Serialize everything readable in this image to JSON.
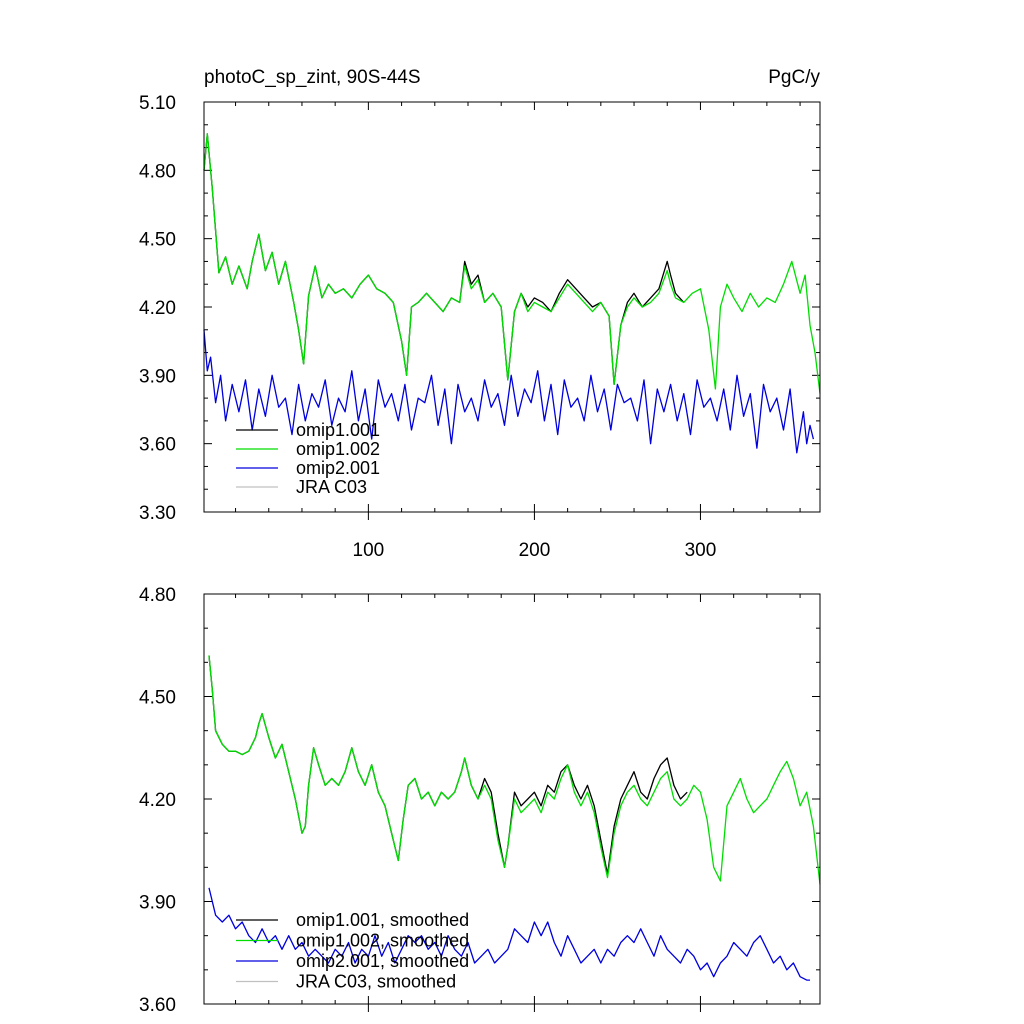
{
  "chart_data": [
    {
      "type": "line",
      "title": "photoC_sp_zint, 90S-44S",
      "units": "PgC/y",
      "xlim": [
        1,
        372
      ],
      "ylim": [
        3.3,
        5.1
      ],
      "yticks": [
        "3.30",
        "3.60",
        "3.90",
        "4.20",
        "4.50",
        "4.80",
        "5.10"
      ],
      "xticks": [
        "100",
        "200",
        "300"
      ],
      "grid": false,
      "legend_position": "bottom-left",
      "series": [
        {
          "name": "omip1.001",
          "color": "#000000",
          "x": [
            1,
            3,
            6,
            10,
            14,
            18,
            22,
            27,
            30,
            34,
            38,
            42,
            46,
            50,
            55,
            58,
            61,
            64,
            68,
            72,
            76,
            80,
            85,
            90,
            95,
            100,
            105,
            110,
            115,
            120,
            123,
            126,
            130,
            135,
            140,
            145,
            150,
            155,
            158,
            162,
            166,
            170,
            175,
            180,
            184,
            188,
            192,
            196,
            200,
            205,
            210,
            215,
            220,
            225,
            230,
            235,
            240,
            245,
            248,
            252,
            256,
            260,
            265,
            270,
            275,
            280,
            282,
            285,
            290
          ],
          "y": [
            4.8,
            4.96,
            4.72,
            4.35,
            4.42,
            4.3,
            4.38,
            4.28,
            4.4,
            4.52,
            4.36,
            4.44,
            4.3,
            4.4,
            4.22,
            4.1,
            3.95,
            4.25,
            4.38,
            4.24,
            4.3,
            4.26,
            4.28,
            4.24,
            4.3,
            4.34,
            4.28,
            4.26,
            4.22,
            4.05,
            3.9,
            4.2,
            4.22,
            4.26,
            4.22,
            4.18,
            4.24,
            4.22,
            4.4,
            4.3,
            4.34,
            4.22,
            4.26,
            4.2,
            3.88,
            4.18,
            4.26,
            4.2,
            4.24,
            4.22,
            4.18,
            4.26,
            4.32,
            4.28,
            4.24,
            4.2,
            4.22,
            4.16,
            3.86,
            4.12,
            4.22,
            4.26,
            4.2,
            4.24,
            4.28,
            4.4,
            4.34,
            4.26,
            4.22
          ]
        },
        {
          "name": "omip1.002",
          "color": "#00dd00",
          "x": [
            1,
            3,
            6,
            10,
            14,
            18,
            22,
            27,
            30,
            34,
            38,
            42,
            46,
            50,
            55,
            58,
            61,
            64,
            68,
            72,
            76,
            80,
            85,
            90,
            95,
            100,
            105,
            110,
            115,
            120,
            123,
            126,
            130,
            135,
            140,
            145,
            150,
            155,
            158,
            162,
            166,
            170,
            175,
            180,
            184,
            188,
            192,
            196,
            200,
            205,
            210,
            215,
            220,
            225,
            230,
            235,
            240,
            245,
            248,
            252,
            256,
            260,
            265,
            270,
            275,
            280,
            282,
            285,
            290,
            295,
            300,
            305,
            309,
            312,
            316,
            320,
            325,
            330,
            335,
            340,
            345,
            350,
            355,
            360,
            363,
            366,
            369,
            372
          ],
          "y": [
            4.8,
            4.96,
            4.72,
            4.35,
            4.42,
            4.3,
            4.38,
            4.28,
            4.4,
            4.52,
            4.36,
            4.44,
            4.3,
            4.4,
            4.22,
            4.1,
            3.95,
            4.25,
            4.38,
            4.24,
            4.3,
            4.26,
            4.28,
            4.24,
            4.3,
            4.34,
            4.28,
            4.26,
            4.22,
            4.05,
            3.9,
            4.2,
            4.22,
            4.26,
            4.22,
            4.18,
            4.24,
            4.22,
            4.38,
            4.28,
            4.32,
            4.22,
            4.26,
            4.2,
            3.88,
            4.18,
            4.26,
            4.18,
            4.22,
            4.2,
            4.18,
            4.24,
            4.3,
            4.26,
            4.22,
            4.18,
            4.22,
            4.16,
            3.86,
            4.12,
            4.2,
            4.24,
            4.2,
            4.22,
            4.26,
            4.36,
            4.3,
            4.24,
            4.22,
            4.26,
            4.28,
            4.1,
            3.84,
            4.2,
            4.3,
            4.24,
            4.18,
            4.26,
            4.2,
            4.24,
            4.22,
            4.3,
            4.4,
            4.26,
            4.34,
            4.12,
            4.0,
            3.82
          ]
        },
        {
          "name": "omip2.001",
          "color": "#0000dd",
          "x": [
            1,
            3,
            5,
            8,
            11,
            14,
            18,
            22,
            26,
            30,
            34,
            38,
            42,
            46,
            50,
            54,
            58,
            62,
            66,
            70,
            74,
            78,
            82,
            86,
            90,
            94,
            98,
            102,
            106,
            110,
            114,
            118,
            122,
            126,
            130,
            134,
            138,
            142,
            146,
            150,
            154,
            158,
            162,
            166,
            170,
            174,
            178,
            182,
            186,
            190,
            194,
            198,
            202,
            206,
            210,
            214,
            218,
            222,
            226,
            230,
            234,
            238,
            242,
            246,
            250,
            254,
            258,
            262,
            266,
            270,
            274,
            278,
            282,
            286,
            290,
            294,
            298,
            302,
            306,
            310,
            314,
            318,
            322,
            326,
            330,
            334,
            338,
            342,
            346,
            350,
            354,
            358,
            362,
            364,
            366,
            368
          ],
          "y": [
            4.1,
            3.92,
            3.98,
            3.78,
            3.9,
            3.7,
            3.86,
            3.74,
            3.88,
            3.66,
            3.84,
            3.72,
            3.9,
            3.76,
            3.8,
            3.64,
            3.86,
            3.7,
            3.82,
            3.76,
            3.88,
            3.68,
            3.8,
            3.74,
            3.92,
            3.7,
            3.84,
            3.62,
            3.88,
            3.76,
            3.82,
            3.7,
            3.86,
            3.66,
            3.8,
            3.78,
            3.9,
            3.68,
            3.84,
            3.6,
            3.86,
            3.74,
            3.8,
            3.7,
            3.88,
            3.76,
            3.82,
            3.68,
            3.9,
            3.72,
            3.84,
            3.78,
            3.92,
            3.7,
            3.86,
            3.64,
            3.88,
            3.76,
            3.8,
            3.7,
            3.9,
            3.74,
            3.84,
            3.66,
            3.86,
            3.78,
            3.8,
            3.7,
            3.88,
            3.6,
            3.84,
            3.74,
            3.86,
            3.7,
            3.82,
            3.64,
            3.88,
            3.76,
            3.8,
            3.7,
            3.84,
            3.66,
            3.9,
            3.72,
            3.82,
            3.58,
            3.86,
            3.74,
            3.8,
            3.66,
            3.84,
            3.56,
            3.74,
            3.6,
            3.68,
            3.62
          ]
        },
        {
          "name": "JRA C03",
          "color": "#c0c0c0",
          "x": [],
          "y": []
        }
      ]
    },
    {
      "type": "line",
      "title": "",
      "xlim": [
        1,
        372
      ],
      "ylim": [
        3.6,
        4.8
      ],
      "yticks": [
        "3.60",
        "3.90",
        "4.20",
        "4.50",
        "4.80"
      ],
      "xticks": [],
      "grid": false,
      "legend_position": "bottom-left",
      "series": [
        {
          "name": "omip1.001, smoothed",
          "color": "#000000",
          "x": [
            4,
            6,
            8,
            12,
            16,
            20,
            24,
            28,
            32,
            34,
            36,
            40,
            44,
            48,
            52,
            56,
            60,
            62,
            64,
            67,
            70,
            74,
            78,
            82,
            86,
            90,
            94,
            98,
            102,
            106,
            110,
            114,
            118,
            121,
            124,
            128,
            132,
            136,
            140,
            144,
            148,
            152,
            156,
            158,
            162,
            166,
            170,
            174,
            178,
            182,
            184,
            188,
            192,
            196,
            200,
            204,
            208,
            212,
            216,
            220,
            224,
            228,
            232,
            236,
            240,
            244,
            248,
            252,
            256,
            260,
            264,
            268,
            272,
            276,
            280,
            284,
            288,
            292
          ],
          "y": [
            4.62,
            4.52,
            4.4,
            4.36,
            4.34,
            4.34,
            4.33,
            4.34,
            4.38,
            4.42,
            4.45,
            4.38,
            4.32,
            4.36,
            4.28,
            4.2,
            4.1,
            4.12,
            4.24,
            4.35,
            4.3,
            4.24,
            4.26,
            4.24,
            4.28,
            4.35,
            4.28,
            4.24,
            4.3,
            4.22,
            4.18,
            4.1,
            4.02,
            4.14,
            4.24,
            4.26,
            4.2,
            4.22,
            4.18,
            4.22,
            4.2,
            4.22,
            4.28,
            4.32,
            4.24,
            4.2,
            4.26,
            4.22,
            4.1,
            4.0,
            4.06,
            4.22,
            4.18,
            4.2,
            4.22,
            4.18,
            4.24,
            4.22,
            4.28,
            4.3,
            4.24,
            4.2,
            4.24,
            4.18,
            4.08,
            3.98,
            4.12,
            4.2,
            4.24,
            4.28,
            4.22,
            4.2,
            4.26,
            4.3,
            4.32,
            4.24,
            4.2,
            4.22
          ]
        },
        {
          "name": "omip1.002, smoothed",
          "color": "#00dd00",
          "x": [
            4,
            6,
            8,
            12,
            16,
            20,
            24,
            28,
            32,
            34,
            36,
            40,
            44,
            48,
            52,
            56,
            60,
            62,
            64,
            67,
            70,
            74,
            78,
            82,
            86,
            90,
            94,
            98,
            102,
            106,
            110,
            114,
            118,
            121,
            124,
            128,
            132,
            136,
            140,
            144,
            148,
            152,
            156,
            158,
            162,
            166,
            170,
            174,
            178,
            182,
            184,
            188,
            192,
            196,
            200,
            204,
            208,
            212,
            216,
            220,
            224,
            228,
            232,
            236,
            240,
            244,
            248,
            252,
            256,
            260,
            264,
            268,
            272,
            276,
            280,
            284,
            288,
            292,
            296,
            300,
            304,
            308,
            312,
            316,
            320,
            324,
            328,
            332,
            336,
            340,
            344,
            348,
            352,
            356,
            360,
            364,
            368,
            372
          ],
          "y": [
            4.62,
            4.52,
            4.4,
            4.36,
            4.34,
            4.34,
            4.33,
            4.34,
            4.38,
            4.42,
            4.45,
            4.38,
            4.32,
            4.36,
            4.28,
            4.2,
            4.1,
            4.12,
            4.24,
            4.35,
            4.3,
            4.24,
            4.26,
            4.24,
            4.28,
            4.35,
            4.28,
            4.24,
            4.3,
            4.22,
            4.18,
            4.1,
            4.02,
            4.14,
            4.24,
            4.26,
            4.2,
            4.22,
            4.18,
            4.22,
            4.2,
            4.22,
            4.28,
            4.32,
            4.24,
            4.2,
            4.24,
            4.2,
            4.08,
            4.0,
            4.06,
            4.2,
            4.16,
            4.18,
            4.2,
            4.16,
            4.22,
            4.2,
            4.26,
            4.3,
            4.22,
            4.18,
            4.22,
            4.16,
            4.06,
            3.97,
            4.1,
            4.18,
            4.22,
            4.24,
            4.2,
            4.18,
            4.22,
            4.26,
            4.28,
            4.2,
            4.18,
            4.2,
            4.24,
            4.22,
            4.14,
            4.0,
            3.96,
            4.18,
            4.22,
            4.26,
            4.2,
            4.16,
            4.18,
            4.2,
            4.24,
            4.28,
            4.31,
            4.26,
            4.18,
            4.22,
            4.12,
            3.95
          ]
        },
        {
          "name": "omip2.001, smoothed",
          "color": "#0000dd",
          "x": [
            4,
            8,
            12,
            16,
            20,
            24,
            28,
            32,
            36,
            40,
            44,
            48,
            52,
            56,
            60,
            64,
            68,
            72,
            76,
            80,
            84,
            88,
            92,
            96,
            100,
            104,
            108,
            112,
            116,
            120,
            124,
            128,
            132,
            136,
            140,
            144,
            148,
            152,
            156,
            160,
            164,
            168,
            172,
            176,
            180,
            184,
            188,
            192,
            196,
            200,
            204,
            208,
            212,
            216,
            220,
            224,
            228,
            232,
            236,
            240,
            244,
            248,
            252,
            256,
            260,
            264,
            268,
            272,
            276,
            280,
            284,
            288,
            292,
            296,
            300,
            304,
            308,
            312,
            316,
            320,
            324,
            328,
            332,
            336,
            340,
            344,
            348,
            352,
            356,
            360,
            364,
            366
          ],
          "y": [
            3.94,
            3.86,
            3.84,
            3.86,
            3.82,
            3.84,
            3.8,
            3.78,
            3.82,
            3.78,
            3.8,
            3.76,
            3.8,
            3.76,
            3.78,
            3.74,
            3.76,
            3.74,
            3.72,
            3.76,
            3.74,
            3.78,
            3.72,
            3.76,
            3.74,
            3.8,
            3.74,
            3.78,
            3.72,
            3.76,
            3.8,
            3.78,
            3.8,
            3.76,
            3.78,
            3.74,
            3.8,
            3.76,
            3.74,
            3.78,
            3.72,
            3.74,
            3.76,
            3.72,
            3.74,
            3.76,
            3.82,
            3.8,
            3.78,
            3.84,
            3.8,
            3.84,
            3.78,
            3.74,
            3.8,
            3.76,
            3.72,
            3.74,
            3.76,
            3.72,
            3.76,
            3.74,
            3.78,
            3.8,
            3.78,
            3.82,
            3.78,
            3.74,
            3.8,
            3.76,
            3.74,
            3.72,
            3.76,
            3.74,
            3.7,
            3.72,
            3.68,
            3.72,
            3.74,
            3.78,
            3.76,
            3.74,
            3.78,
            3.8,
            3.76,
            3.72,
            3.74,
            3.7,
            3.72,
            3.68,
            3.67,
            3.67
          ]
        },
        {
          "name": "JRA C03, smoothed",
          "color": "#c0c0c0",
          "x": [],
          "y": []
        }
      ]
    }
  ]
}
